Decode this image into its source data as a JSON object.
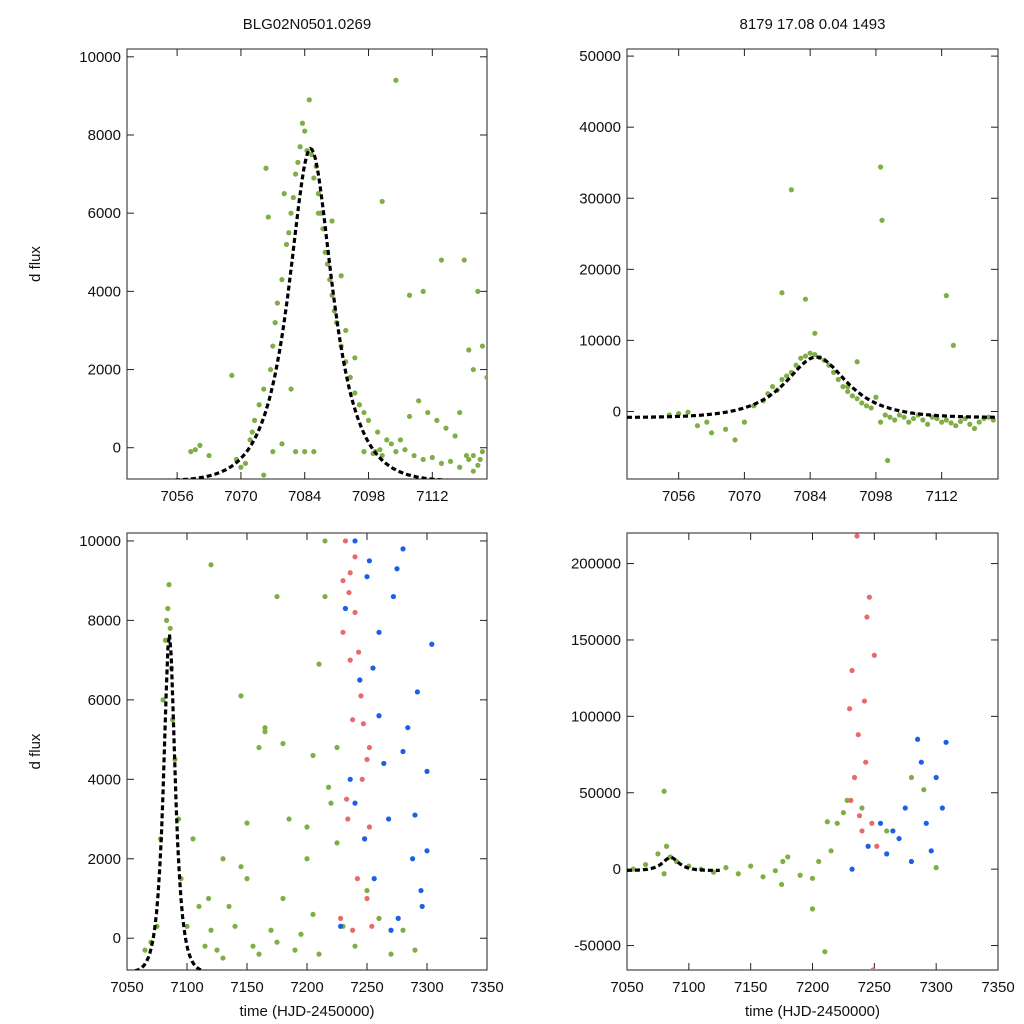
{
  "chart_data": [
    {
      "type": "scatter",
      "panel": "top-left",
      "title": "BLG02N0501.0269",
      "xlabel": "",
      "ylabel": "d flux",
      "xlim": [
        7045,
        7124
      ],
      "ylim": [
        -800,
        10200
      ],
      "xticks": [
        7056,
        7070,
        7084,
        7098,
        7112
      ],
      "yticks": [
        0,
        2000,
        4000,
        6000,
        8000,
        10000
      ],
      "model": {
        "t0": 7085.3,
        "amp": 8500,
        "width": 6.2,
        "base": -850,
        "color": "#000000",
        "style": "dashed"
      },
      "series": [
        {
          "color": "#7fae45",
          "x": [
            7059,
            7060,
            7061,
            7063,
            7068,
            7069,
            7070,
            7071,
            7072,
            7072.5,
            7073,
            7074,
            7075,
            7075.5,
            7076,
            7076.5,
            7077,
            7077.5,
            7078,
            7079,
            7079.5,
            7080,
            7080.5,
            7081,
            7081.5,
            7082,
            7082.5,
            7083,
            7083.5,
            7084,
            7084.5,
            7085,
            7085.5,
            7086,
            7086.5,
            7087,
            7087.5,
            7088,
            7088.5,
            7089,
            7089.5,
            7090,
            7090.5,
            7091,
            7092,
            7093,
            7094,
            7095,
            7096,
            7097,
            7098,
            7100,
            7101,
            7102,
            7104,
            7106,
            7108,
            7110,
            7112,
            7114,
            7116,
            7118,
            7120,
            7121,
            7122,
            7123
          ],
          "y": [
            -100,
            -50,
            60,
            -200,
            1850,
            -300,
            -500,
            -400,
            200,
            400,
            700,
            1100,
            1500,
            7150,
            5900,
            2000,
            2600,
            3200,
            3700,
            4300,
            6500,
            5200,
            5500,
            6000,
            6400,
            7000,
            7300,
            7700,
            8300,
            8100,
            7600,
            8900,
            7500,
            6900,
            7200,
            6500,
            6000,
            5600,
            5000,
            4700,
            4300,
            3900,
            3500,
            3200,
            2600,
            2200,
            1800,
            1400,
            1100,
            900,
            700,
            400,
            6300,
            200,
            -100,
            -50,
            -200,
            -300,
            -250,
            -400,
            -350,
            -500,
            -300,
            -200,
            -450,
            -100
          ]
        },
        {
          "color": "#7fae45",
          "x": [
            7074,
            7075,
            7077,
            7079,
            7081,
            7082,
            7084,
            7086,
            7087,
            7090,
            7092,
            7093,
            7095,
            7097,
            7099,
            7101,
            7103,
            7105,
            7107,
            7109,
            7111,
            7113,
            7115,
            7117,
            7119,
            7120,
            7121,
            7122,
            7123,
            7124,
            7104,
            7107,
            7110,
            7114,
            7118,
            7119.5,
            7121,
            7122.5,
            7099.5,
            7100.5
          ],
          "y": [
            -900,
            -700,
            -100,
            100,
            1500,
            -100,
            -100,
            -100,
            6000,
            5800,
            4400,
            3000,
            2300,
            -100,
            -150,
            -200,
            100,
            200,
            800,
            1200,
            900,
            700,
            500,
            300,
            4800,
            2500,
            2000,
            4000,
            2600,
            1800,
            9400,
            3900,
            4000,
            4800,
            900,
            -200,
            -600,
            -300,
            -100,
            -50
          ]
        }
      ]
    },
    {
      "type": "scatter",
      "panel": "top-right",
      "title": "8179  17.08  0.04  1493",
      "xlabel": "",
      "ylabel": "",
      "xlim": [
        7045,
        7124
      ],
      "ylim": [
        -9500,
        51000
      ],
      "xticks": [
        7056,
        7070,
        7084,
        7098,
        7112
      ],
      "yticks": [
        0,
        10000,
        20000,
        30000,
        40000,
        50000
      ],
      "model": {
        "t0": 7085.3,
        "amp": 8500,
        "width": 8.5,
        "base": -850,
        "color": "#000000",
        "style": "dashed"
      },
      "series": [
        {
          "color": "#7fae45",
          "x": [
            7054,
            7056,
            7058,
            7060,
            7062,
            7063,
            7066,
            7068,
            7070,
            7072,
            7074,
            7075,
            7076,
            7077,
            7078,
            7079,
            7080,
            7081,
            7082,
            7083,
            7084,
            7085,
            7086,
            7087,
            7088,
            7089,
            7090,
            7091,
            7092,
            7093,
            7094,
            7095,
            7096,
            7097,
            7098,
            7099,
            7100,
            7101,
            7102,
            7103,
            7104,
            7105,
            7106,
            7107,
            7108,
            7109,
            7110,
            7111,
            7112,
            7113,
            7114,
            7115,
            7116,
            7117,
            7118,
            7119,
            7120,
            7121,
            7122,
            7123,
            7078,
            7080,
            7083,
            7085,
            7092,
            7094,
            7099,
            7099.3,
            7100.5,
            7113,
            7114.5
          ],
          "y": [
            -500,
            -300,
            -100,
            -2000,
            -1500,
            -3000,
            -2500,
            -4000,
            -1500,
            800,
            1500,
            2500,
            3500,
            3000,
            4500,
            5000,
            5500,
            6500,
            7500,
            7800,
            8200,
            8000,
            7600,
            7200,
            6500,
            5500,
            4500,
            3500,
            2800,
            2200,
            1800,
            1200,
            800,
            500,
            2000,
            -1500,
            -500,
            -800,
            -1200,
            -500,
            -800,
            -1500,
            -1000,
            -500,
            -1200,
            -1800,
            -800,
            -1000,
            -1500,
            -1200,
            -1600,
            -2000,
            -1400,
            -1000,
            -1800,
            -2400,
            -1500,
            -1000,
            -800,
            -1200,
            16700,
            31200,
            15800,
            11000,
            3500,
            7000,
            34400,
            26900,
            -6900,
            16300,
            9300
          ]
        }
      ]
    },
    {
      "type": "scatter",
      "panel": "bottom-left",
      "title": "",
      "xlabel": "time (HJD-2450000)",
      "ylabel": "d flux",
      "xlim": [
        7050,
        7350
      ],
      "ylim": [
        -800,
        10200
      ],
      "xticks": [
        7050,
        7100,
        7150,
        7200,
        7250,
        7300,
        7350
      ],
      "yticks": [
        0,
        2000,
        4000,
        6000,
        8000,
        10000
      ],
      "model": {
        "t0": 7085.3,
        "amp": 8500,
        "width": 6.2,
        "base": -850,
        "color": "#000000",
        "style": "dashed"
      },
      "series": [
        {
          "color": "#7fae45",
          "x": [
            7065,
            7070,
            7075,
            7078,
            7080,
            7082,
            7083,
            7084,
            7085,
            7086,
            7087,
            7088,
            7090,
            7093,
            7095,
            7100,
            7105,
            7110,
            7115,
            7118,
            7120,
            7125,
            7130,
            7135,
            7140,
            7145,
            7150,
            7155,
            7160,
            7165,
            7170,
            7175,
            7180,
            7185,
            7190,
            7195,
            7200,
            7205,
            7210,
            7215,
            7220,
            7225,
            7230,
            7240,
            7250,
            7260,
            7270,
            7280,
            7290,
            7145,
            7160,
            7165,
            7175,
            7180,
            7200,
            7205,
            7210,
            7215,
            7218,
            7225,
            7120,
            7130,
            7150
          ],
          "y": [
            -300,
            -100,
            300,
            2500,
            6000,
            7500,
            8000,
            8300,
            8900,
            7800,
            6800,
            5500,
            4500,
            3000,
            1500,
            300,
            2500,
            800,
            -200,
            1000,
            200,
            -300,
            -500,
            800,
            300,
            6100,
            1500,
            -200,
            -400,
            5300,
            200,
            -100,
            1000,
            3000,
            -300,
            100,
            2000,
            600,
            -400,
            8600,
            3400,
            2400,
            300,
            -200,
            1200,
            500,
            -400,
            200,
            -300,
            1800,
            4800,
            5200,
            8600,
            4900,
            2800,
            4600,
            6900,
            10000,
            3800,
            4800,
            9400,
            2000,
            2900
          ]
        },
        {
          "color": "#e86a6a",
          "x": [
            7228,
            7230,
            7232,
            7234,
            7236,
            7238,
            7240,
            7242,
            7244,
            7246,
            7248,
            7250,
            7252,
            7254,
            7230,
            7235,
            7240,
            7245,
            7250,
            7233,
            7238,
            7243,
            7247,
            7252,
            7236
          ],
          "y": [
            500,
            9000,
            10000,
            3000,
            7000,
            5500,
            8200,
            1500,
            6500,
            4000,
            2500,
            1000,
            4800,
            300,
            7700,
            8700,
            9600,
            6100,
            4500,
            3500,
            200,
            7200,
            5400,
            2800,
            9200
          ]
        },
        {
          "color": "#1a5fe6",
          "x": [
            7228,
            7232,
            7236,
            7240,
            7244,
            7248,
            7252,
            7256,
            7260,
            7264,
            7268,
            7272,
            7276,
            7280,
            7284,
            7288,
            7292,
            7296,
            7300,
            7304,
            7240,
            7250,
            7260,
            7270,
            7280,
            7290,
            7300,
            7255,
            7275,
            7295
          ],
          "y": [
            300,
            8300,
            4000,
            10000,
            6500,
            2500,
            9500,
            1500,
            7700,
            4400,
            3000,
            8600,
            500,
            9800,
            5300,
            2000,
            6200,
            800,
            4200,
            7400,
            3400,
            9100,
            5600,
            200,
            4700,
            3100,
            2200,
            6800,
            9300,
            1200
          ]
        }
      ]
    },
    {
      "type": "scatter",
      "panel": "bottom-right",
      "title": "",
      "xlabel": "time (HJD-2450000)",
      "ylabel": "",
      "xlim": [
        7050,
        7350
      ],
      "ylim": [
        -66000,
        220000
      ],
      "xticks": [
        7050,
        7100,
        7150,
        7200,
        7250,
        7300,
        7350
      ],
      "yticks": [
        -50000,
        0,
        50000,
        100000,
        150000,
        200000
      ],
      "model": {
        "t0": 7085.3,
        "amp": 8500,
        "width": 8.5,
        "base": -850,
        "color": "#000000",
        "style": "dashed",
        "xmax": 7125
      },
      "series": [
        {
          "color": "#7fae45",
          "x": [
            7055,
            7065,
            7075,
            7080,
            7082,
            7085,
            7090,
            7100,
            7110,
            7120,
            7130,
            7140,
            7150,
            7160,
            7170,
            7175,
            7180,
            7190,
            7200,
            7205,
            7210,
            7215,
            7220,
            7225,
            7240,
            7260,
            7280,
            7290,
            7300,
            7080,
            7176,
            7200,
            7212,
            7228
          ],
          "y": [
            0,
            3000,
            10000,
            51000,
            15000,
            8000,
            5000,
            2000,
            0,
            -2000,
            1000,
            -3000,
            2000,
            -5000,
            -1000,
            -10000,
            8000,
            -4000,
            -26000,
            5000,
            -54000,
            12000,
            30000,
            37000,
            40000,
            25000,
            60000,
            52000,
            1000,
            -3000,
            5000,
            -6000,
            31000,
            45000
          ]
        },
        {
          "color": "#e86a6a",
          "x": [
            7230,
            7232,
            7234,
            7236,
            7238,
            7240,
            7242,
            7244,
            7246,
            7248,
            7250,
            7252,
            7231,
            7237,
            7243,
            7249
          ],
          "y": [
            105000,
            130000,
            60000,
            218000,
            35000,
            25000,
            110000,
            165000,
            178000,
            30000,
            140000,
            15000,
            45000,
            88000,
            70000,
            -66000
          ]
        },
        {
          "color": "#1a5fe6",
          "x": [
            7232,
            7245,
            7255,
            7260,
            7265,
            7270,
            7275,
            7280,
            7285,
            7288,
            7292,
            7296,
            7300,
            7305,
            7308
          ],
          "y": [
            0,
            15000,
            30000,
            10000,
            25000,
            20000,
            40000,
            5000,
            85000,
            70000,
            30000,
            12000,
            60000,
            40000,
            83000
          ]
        }
      ]
    }
  ]
}
